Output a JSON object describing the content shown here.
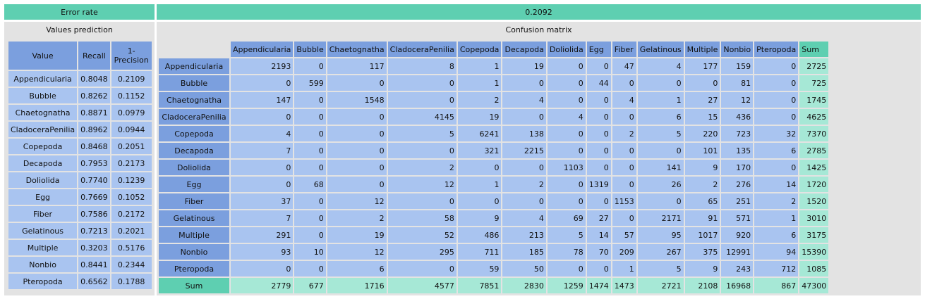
{
  "error_rate": {
    "label": "Error rate",
    "value": "0.2092"
  },
  "values_prediction": {
    "title": "Values prediction",
    "headers": {
      "value": "Value",
      "recall": "Recall",
      "precision_l1": "1-",
      "precision_l2": "Precision"
    },
    "rows": [
      {
        "name": "Appendicularia",
        "recall": "0.8048",
        "one_minus_precision": "0.2109"
      },
      {
        "name": "Bubble",
        "recall": "0.8262",
        "one_minus_precision": "0.1152"
      },
      {
        "name": "Chaetognatha",
        "recall": "0.8871",
        "one_minus_precision": "0.0979"
      },
      {
        "name": "CladoceraPenilia",
        "recall": "0.8962",
        "one_minus_precision": "0.0944"
      },
      {
        "name": "Copepoda",
        "recall": "0.8468",
        "one_minus_precision": "0.2051"
      },
      {
        "name": "Decapoda",
        "recall": "0.7953",
        "one_minus_precision": "0.2173"
      },
      {
        "name": "Doliolida",
        "recall": "0.7740",
        "one_minus_precision": "0.1239"
      },
      {
        "name": "Egg",
        "recall": "0.7669",
        "one_minus_precision": "0.1052"
      },
      {
        "name": "Fiber",
        "recall": "0.7586",
        "one_minus_precision": "0.2172"
      },
      {
        "name": "Gelatinous",
        "recall": "0.7213",
        "one_minus_precision": "0.2021"
      },
      {
        "name": "Multiple",
        "recall": "0.3203",
        "one_minus_precision": "0.5176"
      },
      {
        "name": "Nonbio",
        "recall": "0.8441",
        "one_minus_precision": "0.2344"
      },
      {
        "name": "Pteropoda",
        "recall": "0.6562",
        "one_minus_precision": "0.1788"
      }
    ]
  },
  "confusion_matrix": {
    "title": "Confusion matrix",
    "columns": [
      "Appendicularia",
      "Bubble",
      "Chaetognatha",
      "CladoceraPenilia",
      "Copepoda",
      "Decapoda",
      "Doliolida",
      "Egg",
      "Fiber",
      "Gelatinous",
      "Multiple",
      "Nonbio",
      "Pteropoda"
    ],
    "sum_label": "Sum",
    "rows": [
      {
        "label": "Appendicularia",
        "values": [
          "2193",
          "0",
          "117",
          "8",
          "1",
          "19",
          "0",
          "0",
          "47",
          "4",
          "177",
          "159",
          "0"
        ],
        "sum": "2725"
      },
      {
        "label": "Bubble",
        "values": [
          "0",
          "599",
          "0",
          "0",
          "1",
          "0",
          "0",
          "44",
          "0",
          "0",
          "0",
          "81",
          "0"
        ],
        "sum": "725"
      },
      {
        "label": "Chaetognatha",
        "values": [
          "147",
          "0",
          "1548",
          "0",
          "2",
          "4",
          "0",
          "0",
          "4",
          "1",
          "27",
          "12",
          "0"
        ],
        "sum": "1745"
      },
      {
        "label": "CladoceraPenilia",
        "values": [
          "0",
          "0",
          "0",
          "4145",
          "19",
          "0",
          "4",
          "0",
          "0",
          "6",
          "15",
          "436",
          "0"
        ],
        "sum": "4625"
      },
      {
        "label": "Copepoda",
        "values": [
          "4",
          "0",
          "0",
          "5",
          "6241",
          "138",
          "0",
          "0",
          "2",
          "5",
          "220",
          "723",
          "32"
        ],
        "sum": "7370"
      },
      {
        "label": "Decapoda",
        "values": [
          "7",
          "0",
          "0",
          "0",
          "321",
          "2215",
          "0",
          "0",
          "0",
          "0",
          "101",
          "135",
          "6"
        ],
        "sum": "2785"
      },
      {
        "label": "Doliolida",
        "values": [
          "0",
          "0",
          "0",
          "2",
          "0",
          "0",
          "1103",
          "0",
          "0",
          "141",
          "9",
          "170",
          "0"
        ],
        "sum": "1425"
      },
      {
        "label": "Egg",
        "values": [
          "0",
          "68",
          "0",
          "12",
          "1",
          "2",
          "0",
          "1319",
          "0",
          "26",
          "2",
          "276",
          "14"
        ],
        "sum": "1720"
      },
      {
        "label": "Fiber",
        "values": [
          "37",
          "0",
          "12",
          "0",
          "0",
          "0",
          "0",
          "0",
          "1153",
          "0",
          "65",
          "251",
          "2"
        ],
        "sum": "1520"
      },
      {
        "label": "Gelatinous",
        "values": [
          "7",
          "0",
          "2",
          "58",
          "9",
          "4",
          "69",
          "27",
          "0",
          "2171",
          "91",
          "571",
          "1"
        ],
        "sum": "3010"
      },
      {
        "label": "Multiple",
        "values": [
          "291",
          "0",
          "19",
          "52",
          "486",
          "213",
          "5",
          "14",
          "57",
          "95",
          "1017",
          "920",
          "6"
        ],
        "sum": "3175"
      },
      {
        "label": "Nonbio",
        "values": [
          "93",
          "10",
          "12",
          "295",
          "711",
          "185",
          "78",
          "70",
          "209",
          "267",
          "375",
          "12991",
          "94"
        ],
        "sum": "15390"
      },
      {
        "label": "Pteropoda",
        "values": [
          "0",
          "0",
          "6",
          "0",
          "59",
          "50",
          "0",
          "0",
          "1",
          "5",
          "9",
          "243",
          "712"
        ],
        "sum": "1085"
      }
    ],
    "sum_row": {
      "label": "Sum",
      "values": [
        "2779",
        "677",
        "1716",
        "4577",
        "7851",
        "2830",
        "1259",
        "1474",
        "1473",
        "2721",
        "2108",
        "16968",
        "867"
      ],
      "total": "47300"
    }
  },
  "colors": {
    "teal": "#5ecfb1",
    "header_blue": "#7b9fde",
    "cell_blue": "#a9c4f0",
    "sum_cell": "#a6e8d6",
    "panel_grey": "#e3e3e3"
  }
}
